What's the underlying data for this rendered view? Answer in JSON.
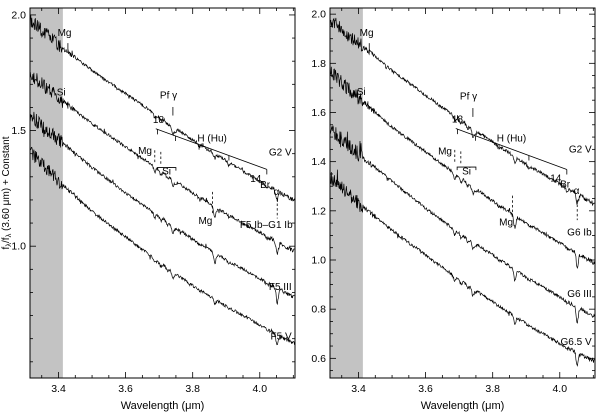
{
  "figure": {
    "background": "#ffffff",
    "ink": "#000000",
    "band_color": "#c3c3c3"
  },
  "chart_data": [
    {
      "type": "line",
      "panel": "left",
      "xlabel": "Wavelength (μm)",
      "ylabel": "fλ/fλ (3.60 μm) + Constant",
      "xlim": [
        3.315,
        4.105
      ],
      "ylim": [
        0.43,
        2.03
      ],
      "xticks": [
        3.4,
        3.6,
        3.8,
        4.0
      ],
      "xtick_labels": [
        "3.4",
        "3.6",
        "3.8",
        "4.0"
      ],
      "yticks": [
        1.0,
        1.5,
        2.0
      ],
      "ytick_labels": [
        "1.0",
        "1.5",
        "2.0"
      ],
      "x_minor_step": 0.05,
      "y_minor_step": 0.1,
      "telluric_band": [
        3.315,
        3.413
      ],
      "x_samples": [
        3.32,
        3.4,
        3.5,
        3.6,
        3.7,
        3.8,
        3.9,
        4.0,
        4.1
      ],
      "series": [
        {
          "name": "G2 V",
          "values": [
            1.97,
            1.87,
            1.76,
            1.66,
            1.56,
            1.46,
            1.37,
            1.28,
            1.2
          ],
          "label_x": 4.095,
          "label_y": 1.392
        },
        {
          "name": "F5 Ib–G1 Ib",
          "values": [
            1.74,
            1.64,
            1.53,
            1.43,
            1.33,
            1.23,
            1.14,
            1.06,
            0.98
          ],
          "label_x": 4.098,
          "label_y": 1.078
        },
        {
          "name": "F5 III",
          "values": [
            1.56,
            1.46,
            1.34,
            1.23,
            1.13,
            1.03,
            0.94,
            0.86,
            0.78
          ],
          "label_x": 4.095,
          "label_y": 0.81
        },
        {
          "name": "F5 V",
          "values": [
            1.4,
            1.28,
            1.15,
            1.04,
            0.93,
            0.83,
            0.74,
            0.66,
            0.58
          ],
          "label_x": 4.095,
          "label_y": 0.597
        }
      ],
      "features": [
        {
          "x": 3.687,
          "name": "Mg",
          "depths": [
            0.016,
            0.02,
            0.02,
            0.015
          ]
        },
        {
          "x": 3.705,
          "name": "Mg",
          "depths": [
            0.012,
            0.016,
            0.015,
            0.012
          ]
        },
        {
          "x": 3.725,
          "name": "Si",
          "depths": [
            0.01,
            0.014,
            0.012,
            0.01
          ]
        },
        {
          "x": 3.741,
          "name": "Pf γ",
          "depths": [
            0.032,
            0.03,
            0.034,
            0.028
          ]
        },
        {
          "x": 3.749,
          "name": "Hu 17",
          "depths": [
            0.014,
            0.008,
            0.006,
            0.005
          ]
        },
        {
          "x": 3.819,
          "name": "Hu 16",
          "depths": [
            0.013,
            0.006,
            0.005,
            0.004
          ]
        },
        {
          "x": 3.866,
          "name": "Mg",
          "depths": [
            0.02,
            0.046,
            0.044,
            0.024
          ]
        },
        {
          "x": 3.908,
          "name": "Hu 15",
          "depths": [
            0.013,
            0.007,
            0.006,
            0.005
          ]
        },
        {
          "x": 4.021,
          "name": "Hu 14",
          "depths": [
            0.016,
            0.009,
            0.007,
            0.006
          ]
        },
        {
          "x": 4.052,
          "name": "Br α",
          "depths": [
            0.04,
            0.056,
            0.06,
            0.05
          ]
        }
      ],
      "annotations": [
        {
          "text": "Mg",
          "x": 3.418,
          "y": 1.908
        },
        {
          "text": "Si",
          "x": 3.408,
          "y": 1.652
        },
        {
          "text": "Pf γ",
          "x": 3.728,
          "y": 1.638
        },
        {
          "text": "18",
          "x": 3.698,
          "y": 1.532
        },
        {
          "text": "H (Hu)",
          "x": 3.858,
          "y": 1.452
        },
        {
          "text": "Mg",
          "x": 3.658,
          "y": 1.398
        },
        {
          "text": "Si",
          "x": 3.722,
          "y": 1.31
        },
        {
          "text": "Mg",
          "x": 3.838,
          "y": 1.095
        },
        {
          "text": "14",
          "x": 3.988,
          "y": 1.278
        },
        {
          "text": "Br",
          "x": 4.016,
          "y": 1.252
        },
        {
          "text": "α",
          "x": 4.05,
          "y": 1.222
        }
      ],
      "markers": [
        {
          "type": "vline",
          "x": 3.428,
          "y1": 1.878,
          "y2": 1.845
        },
        {
          "type": "vline",
          "x": 3.428,
          "y1": 1.625,
          "y2": 1.595
        },
        {
          "type": "vline",
          "x": 3.741,
          "y1": 1.602,
          "y2": 1.565
        },
        {
          "type": "slant",
          "x1": 3.69,
          "y1": 1.508,
          "x2": 4.021,
          "y2": 1.332,
          "ticks": [
            3.695,
            3.749,
            3.819,
            3.908,
            4.021
          ]
        },
        {
          "type": "dvline",
          "x": 3.687,
          "y1": 1.415,
          "y2": 1.356
        },
        {
          "type": "dvline",
          "x": 3.705,
          "y1": 1.408,
          "y2": 1.35
        },
        {
          "type": "hbracket",
          "x1": 3.694,
          "x2": 3.75,
          "y": 1.34
        },
        {
          "type": "dvline",
          "x": 3.859,
          "y1": 1.235,
          "y2": 1.135
        },
        {
          "type": "dvline",
          "x": 4.052,
          "y1": 1.205,
          "y2": 1.12
        }
      ]
    },
    {
      "type": "line",
      "panel": "right",
      "xlabel": "Wavelength (μm)",
      "ylabel": "",
      "xlim": [
        3.315,
        4.105
      ],
      "ylim": [
        0.52,
        2.025
      ],
      "xticks": [
        3.4,
        3.6,
        3.8,
        4.0
      ],
      "xtick_labels": [
        "3.4",
        "3.6",
        "3.8",
        "4.0"
      ],
      "yticks": [
        0.6,
        0.8,
        1.0,
        1.2,
        1.4,
        1.6,
        1.8,
        2.0
      ],
      "ytick_labels": [
        "0.6",
        "0.8",
        "1.0",
        "1.2",
        "1.4",
        "1.6",
        "1.8",
        "2.0"
      ],
      "x_minor_step": 0.05,
      "y_minor_step": 0.05,
      "telluric_band": [
        3.315,
        3.413
      ],
      "x_samples": [
        3.32,
        3.4,
        3.5,
        3.6,
        3.7,
        3.8,
        3.9,
        4.0,
        4.1
      ],
      "series": [
        {
          "name": "G2 V",
          "values": [
            1.97,
            1.88,
            1.77,
            1.67,
            1.57,
            1.48,
            1.39,
            1.31,
            1.23
          ],
          "label_x": 4.095,
          "label_y": 1.437
        },
        {
          "name": "G6 Ib",
          "values": [
            1.76,
            1.66,
            1.54,
            1.44,
            1.34,
            1.24,
            1.15,
            1.07,
            0.99
          ],
          "label_x": 4.095,
          "label_y": 1.1
        },
        {
          "name": "G6 III",
          "values": [
            1.53,
            1.43,
            1.32,
            1.21,
            1.11,
            1.02,
            0.93,
            0.85,
            0.77
          ],
          "label_x": 4.095,
          "label_y": 0.85
        },
        {
          "name": "G6.5 V",
          "values": [
            1.33,
            1.23,
            1.12,
            1.02,
            0.92,
            0.83,
            0.74,
            0.66,
            0.59
          ],
          "label_x": 4.095,
          "label_y": 0.654
        }
      ],
      "features": [
        {
          "x": 3.687,
          "name": "Mg",
          "depths": [
            0.018,
            0.022,
            0.02,
            0.016
          ]
        },
        {
          "x": 3.705,
          "name": "Mg",
          "depths": [
            0.014,
            0.018,
            0.016,
            0.012
          ]
        },
        {
          "x": 3.725,
          "name": "Si",
          "depths": [
            0.012,
            0.015,
            0.012,
            0.01
          ]
        },
        {
          "x": 3.741,
          "name": "Pf γ",
          "depths": [
            0.03,
            0.028,
            0.03,
            0.026
          ]
        },
        {
          "x": 3.749,
          "name": "Hu 17",
          "depths": [
            0.012,
            0.007,
            0.006,
            0.005
          ]
        },
        {
          "x": 3.819,
          "name": "Hu 16",
          "depths": [
            0.011,
            0.006,
            0.005,
            0.004
          ]
        },
        {
          "x": 3.866,
          "name": "Mg",
          "depths": [
            0.024,
            0.05,
            0.046,
            0.028
          ]
        },
        {
          "x": 3.908,
          "name": "Hu 15",
          "depths": [
            0.011,
            0.006,
            0.005,
            0.005
          ]
        },
        {
          "x": 4.021,
          "name": "Hu 14",
          "depths": [
            0.013,
            0.008,
            0.007,
            0.006
          ]
        },
        {
          "x": 4.052,
          "name": "Br α",
          "depths": [
            0.038,
            0.054,
            0.058,
            0.048
          ]
        }
      ],
      "annotations": [
        {
          "text": "Mg",
          "x": 3.424,
          "y": 1.912
        },
        {
          "text": "Si",
          "x": 3.408,
          "y": 1.672
        },
        {
          "text": "Pf γ",
          "x": 3.728,
          "y": 1.652
        },
        {
          "text": "18",
          "x": 3.695,
          "y": 1.56
        },
        {
          "text": "H (Hu)",
          "x": 3.856,
          "y": 1.482
        },
        {
          "text": "Mg",
          "x": 3.658,
          "y": 1.43
        },
        {
          "text": "Si",
          "x": 3.722,
          "y": 1.348
        },
        {
          "text": "Mg",
          "x": 3.84,
          "y": 1.14
        },
        {
          "text": "14",
          "x": 3.988,
          "y": 1.32
        },
        {
          "text": "Br",
          "x": 4.016,
          "y": 1.295
        },
        {
          "text": "α",
          "x": 4.05,
          "y": 1.268
        }
      ],
      "markers": [
        {
          "type": "vline",
          "x": 3.432,
          "y1": 1.882,
          "y2": 1.85
        },
        {
          "type": "vline",
          "x": 3.428,
          "y1": 1.645,
          "y2": 1.615
        },
        {
          "type": "vline",
          "x": 3.741,
          "y1": 1.618,
          "y2": 1.582
        },
        {
          "type": "slant",
          "x1": 3.69,
          "y1": 1.535,
          "x2": 4.021,
          "y2": 1.368,
          "ticks": [
            3.695,
            3.749,
            3.819,
            3.908,
            4.021
          ]
        },
        {
          "type": "dvline",
          "x": 3.687,
          "y1": 1.448,
          "y2": 1.392
        },
        {
          "type": "dvline",
          "x": 3.705,
          "y1": 1.442,
          "y2": 1.386
        },
        {
          "type": "hbracket",
          "x1": 3.694,
          "x2": 3.75,
          "y": 1.378
        },
        {
          "type": "dvline",
          "x": 3.859,
          "y1": 1.262,
          "y2": 1.172
        },
        {
          "type": "dvline",
          "x": 4.052,
          "y1": 1.245,
          "y2": 1.162
        }
      ]
    }
  ]
}
